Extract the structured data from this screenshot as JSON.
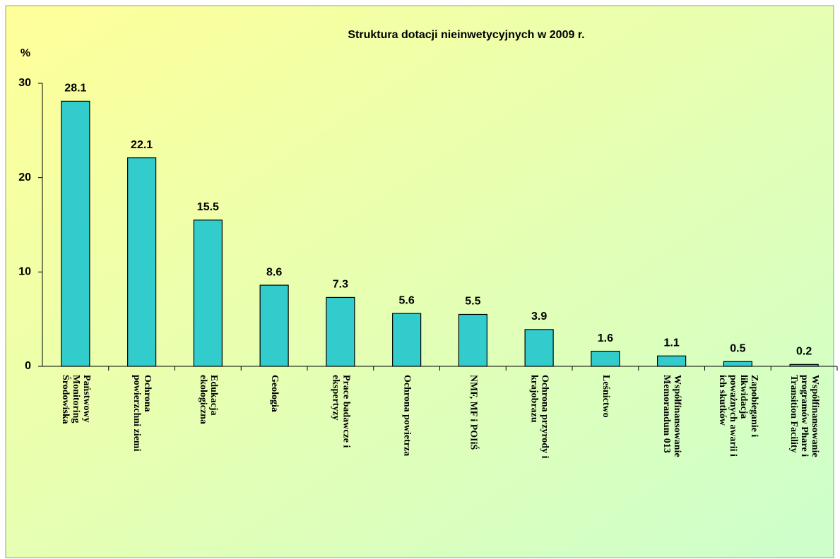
{
  "chart_data": {
    "type": "bar",
    "title": "Struktura dotacji nieinwetycyjnych w 2009 r.",
    "y_label": "%",
    "categories": [
      "Państwowy\nMonitoring\nŚrodowiska",
      "Ochrona\npowierzchni ziemi",
      "Edukacja\nekologiczna",
      "Geologia",
      "Prace badawcze i\nekspertyzy",
      "Ochrona powietrza",
      "NMF, MF i POIiŚ",
      "Ochrona przyrody i\nkrajobrazu",
      "Leśnictwo",
      "Współfinansowanie\nMemorandum 013",
      "Zapobieganie i\nlikwidacja\npoważnych awarii i\nich skutków",
      "Współfinansowanie\nprogramów Phare i\nTransition Facility"
    ],
    "values": [
      28.1,
      22.1,
      15.5,
      8.6,
      7.3,
      5.6,
      5.5,
      3.9,
      1.6,
      1.1,
      0.5,
      0.2
    ],
    "color": "#33cccc",
    "ylim": [
      0,
      30
    ],
    "yticks": [
      0,
      10,
      20,
      30
    ],
    "grid": false
  }
}
